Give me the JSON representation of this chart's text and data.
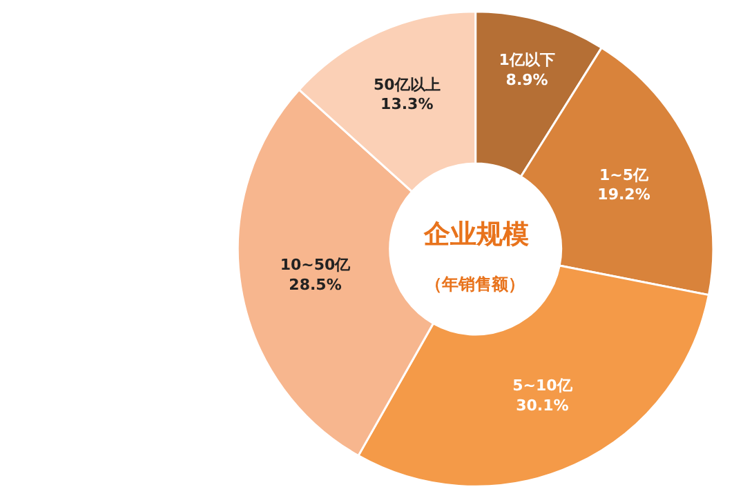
{
  "chart_data": {
    "type": "donut",
    "title": "企业规模",
    "subtitle": "（年销售额）",
    "categories": [
      "1亿以下",
      "1~5亿",
      "5~10亿",
      "10~50亿",
      "50亿以上"
    ],
    "values": [
      8.9,
      19.2,
      30.1,
      28.5,
      13.3
    ],
    "colors": [
      "#b56f35",
      "#d9833b",
      "#f49a48",
      "#f7b68e",
      "#fbd0b6"
    ],
    "value_labels": [
      "8.9%",
      "19.2%",
      "30.1%",
      "28.5%",
      "13.3%"
    ],
    "legend": false
  }
}
